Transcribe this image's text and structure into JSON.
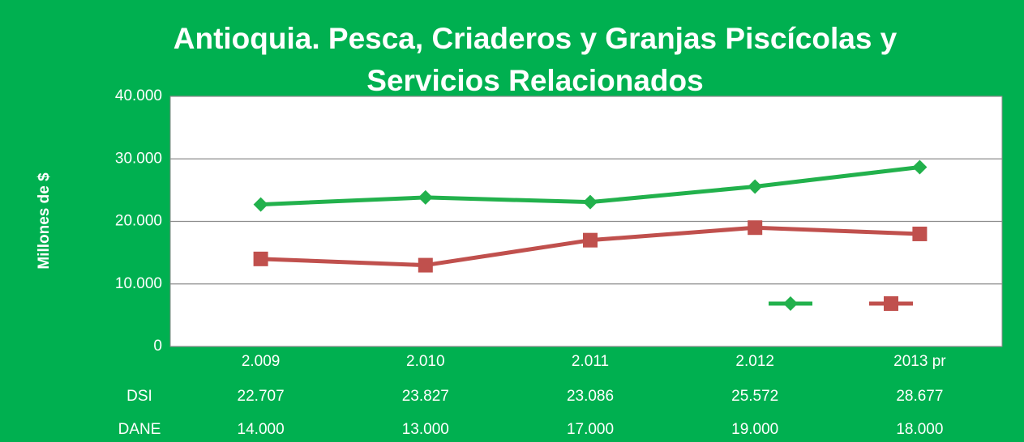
{
  "chart_data": {
    "type": "line",
    "title": "Antioquia. Pesca, Criaderos y Granjas Piscícolas y Servicios Relacionados",
    "ylabel": "Millones de $",
    "categories": [
      "2.009",
      "2.010",
      "2.011",
      "2.012",
      "2013 pr"
    ],
    "series": [
      {
        "name": "DSI",
        "color": "#22b14c",
        "marker": "diamond",
        "values": [
          22707,
          23827,
          23086,
          25572,
          28677
        ],
        "value_labels": [
          "22.707",
          "23.827",
          "23.086",
          "25.572",
          "28.677"
        ]
      },
      {
        "name": "DANE",
        "color": "#c0504d",
        "marker": "square",
        "values": [
          14000,
          13000,
          17000,
          19000,
          18000
        ],
        "value_labels": [
          "14.000",
          "13.000",
          "17.000",
          "19.000",
          "18.000"
        ]
      }
    ],
    "ylim": [
      0,
      40000
    ],
    "yticks": [
      0,
      {
        "value": 10000,
        "label": "10.000"
      },
      {
        "value": 20000,
        "label": "20.000"
      },
      {
        "value": 30000,
        "label": "30.000"
      },
      {
        "value": 40000,
        "label": "40.000"
      }
    ],
    "grid": true,
    "legend": "right",
    "data_table": true
  }
}
